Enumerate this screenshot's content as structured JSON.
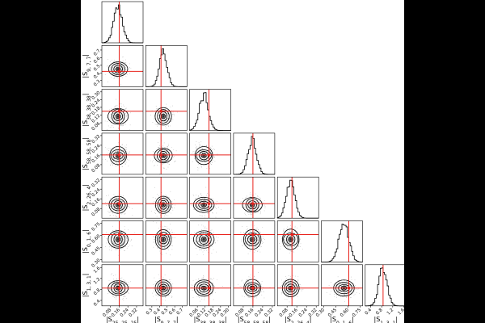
{
  "chart_data": {
    "type": "corner",
    "parameters": [
      {
        "label": "|S",
        "sub": "25, 25, 25",
        "suffix": "|",
        "range": [
          0.0,
          0.38
        ],
        "ticks": [
          "0.08",
          "0.16",
          "0.24",
          "0.32"
        ],
        "tick_values": [
          0.08,
          0.16,
          0.24,
          0.32
        ],
        "truth": 0.16,
        "mean": 0.15,
        "sd": 0.04
      },
      {
        "label": "|S",
        "sub": "9, 7, 7",
        "suffix": "|",
        "range": [
          0.22,
          0.76
        ],
        "ticks": [
          "0.3",
          "0.4",
          "0.5",
          "0.6",
          "0.7"
        ],
        "tick_values": [
          0.3,
          0.4,
          0.5,
          0.6,
          0.7
        ],
        "truth": 0.42,
        "mean": 0.45,
        "sd": 0.05
      },
      {
        "label": "|S",
        "sub": "38, 38, 38",
        "suffix": "|",
        "range": [
          0.0,
          0.32
        ],
        "ticks": [
          "0.06",
          "0.12",
          "0.18",
          "0.24",
          "0.30"
        ],
        "tick_values": [
          0.06,
          0.12,
          0.18,
          0.24,
          0.3
        ],
        "truth": 0.15,
        "mean": 0.11,
        "sd": 0.035
      },
      {
        "label": "|S",
        "sub": "58, 58, 58",
        "suffix": "|",
        "range": [
          0.0,
          0.34
        ],
        "ticks": [
          "0.08",
          "0.16",
          "0.24",
          "0.32"
        ],
        "tick_values": [
          0.08,
          0.16,
          0.24,
          0.32
        ],
        "truth": 0.16,
        "mean": 0.155,
        "sd": 0.035
      },
      {
        "label": "|S",
        "sub": "2, 26, 4",
        "suffix": "|",
        "range": [
          0.0,
          0.34
        ],
        "ticks": [
          "0.08",
          "0.16",
          "0.24",
          "0.32"
        ],
        "tick_values": [
          0.08,
          0.16,
          0.24,
          0.32
        ],
        "truth": 0.12,
        "mean": 0.11,
        "sd": 0.035
      },
      {
        "label": "|S",
        "sub": "0, 1, 6",
        "suffix": "|",
        "range": [
          0.27,
          0.78
        ],
        "ticks": [
          "0.30",
          "0.45",
          "0.60",
          "0.75"
        ],
        "tick_values": [
          0.3,
          0.45,
          0.6,
          0.75
        ],
        "truth": 0.61,
        "mean": 0.55,
        "sd": 0.06
      },
      {
        "label": "|S",
        "sub": "1, 3, 1",
        "suffix": "|",
        "range": [
          0.2,
          1.7
        ],
        "ticks": [
          "0.4",
          "0.8",
          "1.2",
          "1.6"
        ],
        "tick_values": [
          0.4,
          0.8,
          1.2,
          1.6
        ],
        "truth": 0.85,
        "mean": 0.85,
        "sd": 0.15
      }
    ],
    "truth_color": "#e8221c",
    "hist_color": "#000000",
    "contour_color": "#000000",
    "xlabel": "",
    "ylabel": ""
  }
}
